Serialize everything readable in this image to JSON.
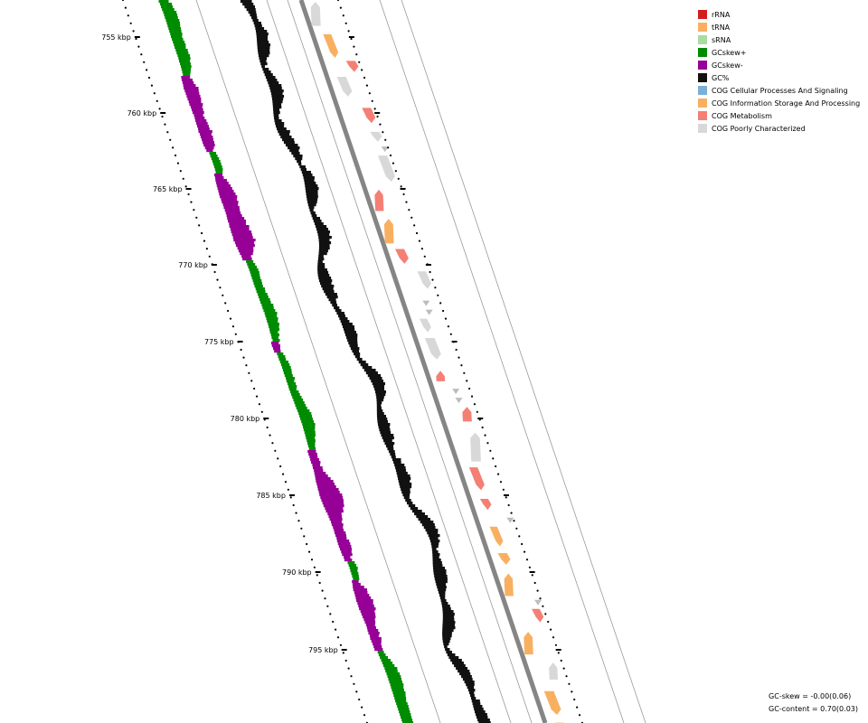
{
  "map": {
    "ticks": [
      "755 kbp",
      "760 kbp",
      "765 kbp",
      "770 kbp",
      "775 kbp",
      "780 kbp",
      "785 kbp",
      "790 kbp",
      "795 kbp"
    ]
  },
  "legend": [
    {
      "label": "rRNA",
      "color": "#d41c1c"
    },
    {
      "label": "tRNA",
      "color": "#f8b060"
    },
    {
      "label": "sRNA",
      "color": "#a8dca0"
    },
    {
      "label": "GCskew+",
      "color": "#008c00"
    },
    {
      "label": "GCskew-",
      "color": "#960096"
    },
    {
      "label": "GC%",
      "color": "#111111"
    },
    {
      "label": "COG Cellular Processes And Signaling",
      "color": "#7aafd8"
    },
    {
      "label": "COG Information Storage And Processing",
      "color": "#f8b060"
    },
    {
      "label": "COG Metabolism",
      "color": "#f47f74"
    },
    {
      "label": "COG Poorly Characterized",
      "color": "#d8d8d8"
    }
  ],
  "stats": {
    "gc_skew": "GC-skew = -0.00(0.06)",
    "gc_content": "GC-content = 0.70(0.03)"
  }
}
